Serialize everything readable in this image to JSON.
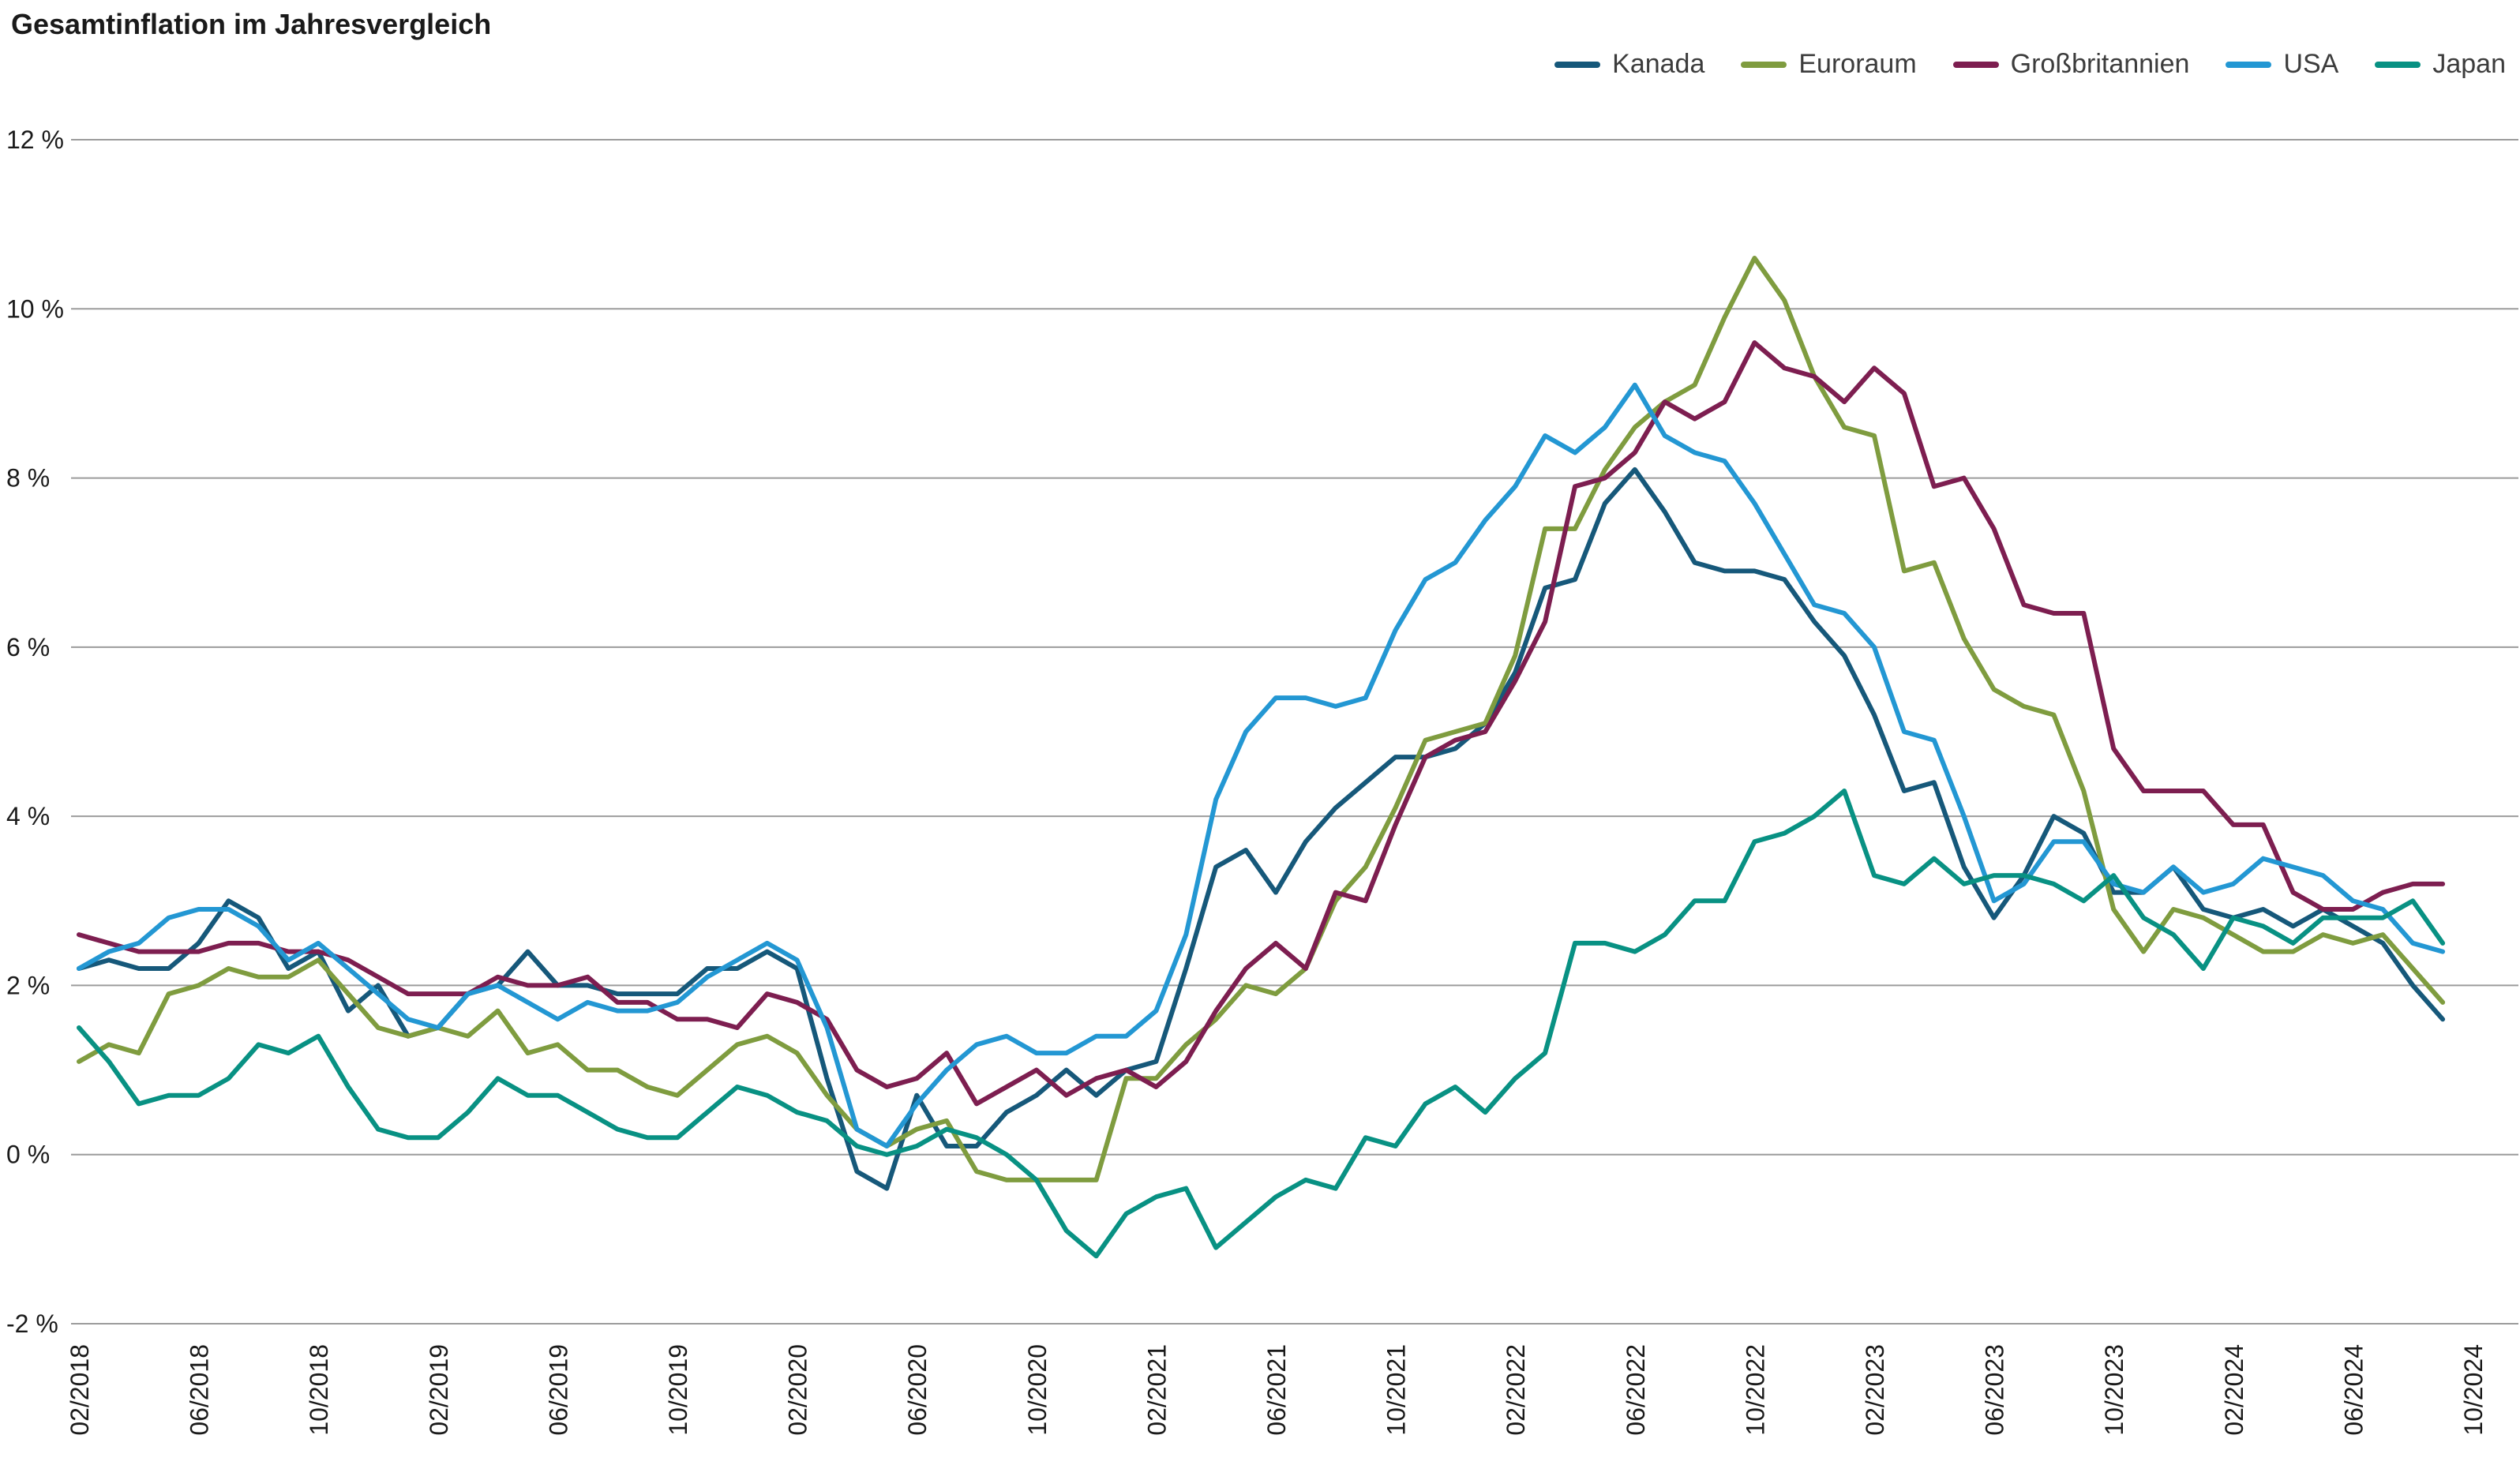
{
  "title": "Gesamtinflation im Jahresvergleich",
  "chart_data": {
    "type": "line",
    "title": "Gesamtinflation im Jahresvergleich",
    "x_frequency": "monthly",
    "x_start": "02/2018",
    "x_end": "09/2024",
    "months_per_tick": 4,
    "x_tick_labels": [
      "02/2018",
      "06/2018",
      "10/2018",
      "02/2019",
      "06/2019",
      "10/2019",
      "02/2020",
      "06/2020",
      "10/2020",
      "02/2021",
      "06/2021",
      "10/2021",
      "02/2022",
      "06/2022",
      "10/2022",
      "02/2023",
      "06/2023",
      "10/2023",
      "02/2024",
      "06/2024",
      "10/2024"
    ],
    "ylim": [
      -2,
      12
    ],
    "y_ticks": [
      12,
      10,
      8,
      6,
      4,
      2,
      0,
      -2
    ],
    "y_tick_labels": [
      "12 %",
      "10 %",
      "8 %",
      "6 %",
      "4 %",
      "2 %",
      "0 %",
      "-2 %"
    ],
    "grid": "horizontal",
    "grid_color": "#9c9c9c",
    "legend_position": "top-right",
    "text_color": "#1a1a1a",
    "series": [
      {
        "id": "kanada",
        "name": "Kanada",
        "color": "#16587a",
        "values": [
          2.2,
          2.3,
          2.2,
          2.2,
          2.5,
          3.0,
          2.8,
          2.2,
          2.4,
          1.7,
          2.0,
          1.4,
          1.5,
          1.9,
          2.0,
          2.4,
          2.0,
          2.0,
          1.9,
          1.9,
          1.9,
          2.2,
          2.2,
          2.4,
          2.2,
          0.9,
          -0.2,
          -0.4,
          0.7,
          0.1,
          0.1,
          0.5,
          0.7,
          1.0,
          0.7,
          1.0,
          1.1,
          2.2,
          3.4,
          3.6,
          3.1,
          3.7,
          4.1,
          4.4,
          4.7,
          4.7,
          4.8,
          5.1,
          5.7,
          6.7,
          6.8,
          7.7,
          8.1,
          7.6,
          7.0,
          6.9,
          6.9,
          6.8,
          6.3,
          5.9,
          5.2,
          4.3,
          4.4,
          3.4,
          2.8,
          3.3,
          4.0,
          3.8,
          3.1,
          3.1,
          3.4,
          2.9,
          2.8,
          2.9,
          2.7,
          2.9,
          2.7,
          2.5,
          2.0,
          1.6
        ]
      },
      {
        "id": "euroraum",
        "name": "Euroraum",
        "color": "#7f9c3f",
        "values": [
          1.1,
          1.3,
          1.2,
          1.9,
          2.0,
          2.2,
          2.1,
          2.1,
          2.3,
          1.9,
          1.5,
          1.4,
          1.5,
          1.4,
          1.7,
          1.2,
          1.3,
          1.0,
          1.0,
          0.8,
          0.7,
          1.0,
          1.3,
          1.4,
          1.2,
          0.7,
          0.3,
          0.1,
          0.3,
          0.4,
          -0.2,
          -0.3,
          -0.3,
          -0.3,
          -0.3,
          0.9,
          0.9,
          1.3,
          1.6,
          2.0,
          1.9,
          2.2,
          3.0,
          3.4,
          4.1,
          4.9,
          5.0,
          5.1,
          5.9,
          7.4,
          7.4,
          8.1,
          8.6,
          8.9,
          9.1,
          9.9,
          10.6,
          10.1,
          9.2,
          8.6,
          8.5,
          6.9,
          7.0,
          6.1,
          5.5,
          5.3,
          5.2,
          4.3,
          2.9,
          2.4,
          2.9,
          2.8,
          2.6,
          2.4,
          2.4,
          2.6,
          2.5,
          2.6,
          2.2,
          1.8
        ]
      },
      {
        "id": "grossbritannien",
        "name": "Großbritannien",
        "color": "#7d1e50",
        "values": [
          2.6,
          2.5,
          2.4,
          2.4,
          2.4,
          2.5,
          2.5,
          2.4,
          2.4,
          2.3,
          2.1,
          1.9,
          1.9,
          1.9,
          2.1,
          2.0,
          2.0,
          2.1,
          1.8,
          1.8,
          1.6,
          1.6,
          1.5,
          1.9,
          1.8,
          1.6,
          1.0,
          0.8,
          0.9,
          1.2,
          0.6,
          0.8,
          1.0,
          0.7,
          0.9,
          1.0,
          0.8,
          1.1,
          1.7,
          2.2,
          2.5,
          2.2,
          3.1,
          3.0,
          3.9,
          4.7,
          4.9,
          5.0,
          5.6,
          6.3,
          7.9,
          8.0,
          8.3,
          8.9,
          8.7,
          8.9,
          9.6,
          9.3,
          9.2,
          8.9,
          9.3,
          9.0,
          7.9,
          8.0,
          7.4,
          6.5,
          6.4,
          6.4,
          4.8,
          4.3,
          4.3,
          4.3,
          3.9,
          3.9,
          3.1,
          2.9,
          2.9,
          3.1,
          3.2,
          3.2
        ]
      },
      {
        "id": "usa",
        "name": "USA",
        "color": "#2397d3",
        "values": [
          2.2,
          2.4,
          2.5,
          2.8,
          2.9,
          2.9,
          2.7,
          2.3,
          2.5,
          2.2,
          1.9,
          1.6,
          1.5,
          1.9,
          2.0,
          1.8,
          1.6,
          1.8,
          1.7,
          1.7,
          1.8,
          2.1,
          2.3,
          2.5,
          2.3,
          1.5,
          0.3,
          0.1,
          0.6,
          1.0,
          1.3,
          1.4,
          1.2,
          1.2,
          1.4,
          1.4,
          1.7,
          2.6,
          4.2,
          5.0,
          5.4,
          5.4,
          5.3,
          5.4,
          6.2,
          6.8,
          7.0,
          7.5,
          7.9,
          8.5,
          8.3,
          8.6,
          9.1,
          8.5,
          8.3,
          8.2,
          7.7,
          7.1,
          6.5,
          6.4,
          6.0,
          5.0,
          4.9,
          4.0,
          3.0,
          3.2,
          3.7,
          3.7,
          3.2,
          3.1,
          3.4,
          3.1,
          3.2,
          3.5,
          3.4,
          3.3,
          3.0,
          2.9,
          2.5,
          2.4
        ]
      },
      {
        "id": "japan",
        "name": "Japan",
        "color": "#089183",
        "values": [
          1.5,
          1.1,
          0.6,
          0.7,
          0.7,
          0.9,
          1.3,
          1.2,
          1.4,
          0.8,
          0.3,
          0.2,
          0.2,
          0.5,
          0.9,
          0.7,
          0.7,
          0.5,
          0.3,
          0.2,
          0.2,
          0.5,
          0.8,
          0.7,
          0.5,
          0.4,
          0.1,
          0.0,
          0.1,
          0.3,
          0.2,
          0.0,
          -0.3,
          -0.9,
          -1.2,
          -0.7,
          -0.5,
          -0.4,
          -1.1,
          -0.8,
          -0.5,
          -0.3,
          -0.4,
          0.2,
          0.1,
          0.6,
          0.8,
          0.5,
          0.9,
          1.2,
          2.5,
          2.5,
          2.4,
          2.6,
          3.0,
          3.0,
          3.7,
          3.8,
          4.0,
          4.3,
          3.3,
          3.2,
          3.5,
          3.2,
          3.3,
          3.3,
          3.2,
          3.0,
          3.3,
          2.8,
          2.6,
          2.2,
          2.8,
          2.7,
          2.5,
          2.8,
          2.8,
          2.8,
          3.0,
          2.5
        ]
      }
    ]
  }
}
